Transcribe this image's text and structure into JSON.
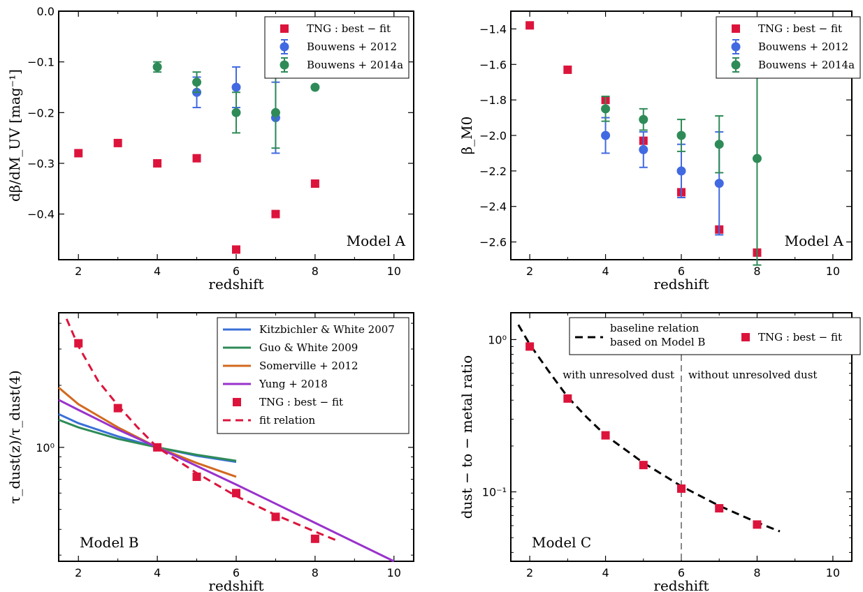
{
  "colors": {
    "tng": "#dc143c",
    "b2012": "#4169e1",
    "b2014": "#2e8b57",
    "kw2007": "#3a6fd8",
    "gw2009": "#2e8b57",
    "s2012": "#d2691e",
    "y2018": "#9932cc",
    "baseline": "#000000",
    "divider": "#888888"
  },
  "chart_data": [
    {
      "type": "scatter",
      "xlabel": "redshift",
      "ylabel": "dβ/dM_UV [mag⁻¹]",
      "xlim": [
        1.5,
        10.5
      ],
      "ylim": [
        -0.49,
        0.0
      ],
      "yscale": "linear",
      "xticks": [
        "2",
        "4",
        "6",
        "8",
        "10"
      ],
      "xtick_values": [
        2,
        4,
        6,
        8,
        10
      ],
      "yticks": [
        "0.0",
        "−0.1",
        "−0.2",
        "−0.3",
        "−0.4"
      ],
      "ytick_values": [
        0.0,
        -0.1,
        -0.2,
        -0.3,
        -0.4
      ],
      "annotation": "Model A",
      "legend_position": "top-right",
      "series": [
        {
          "name": "TNG : best − fit",
          "marker": "square",
          "color": "tng",
          "x": [
            2,
            3,
            4,
            5,
            6,
            7,
            8
          ],
          "y": [
            -0.28,
            -0.26,
            -0.3,
            -0.29,
            -0.47,
            -0.4,
            -0.34
          ]
        },
        {
          "name": "Bouwens + 2012",
          "marker": "circle",
          "color": "b2012",
          "x": [
            5,
            6,
            7
          ],
          "y": [
            -0.16,
            -0.15,
            -0.21
          ],
          "yerr": [
            0.03,
            0.04,
            0.07
          ]
        },
        {
          "name": "Bouwens + 2014a",
          "marker": "circle",
          "color": "b2014",
          "x": [
            4,
            5,
            6,
            7,
            8
          ],
          "y": [
            -0.11,
            -0.14,
            -0.2,
            -0.2,
            -0.15
          ],
          "yerr": [
            0.01,
            0.02,
            0.04,
            0.07,
            0.0
          ]
        }
      ]
    },
    {
      "type": "scatter",
      "xlabel": "redshift",
      "ylabel": "β_M0",
      "xlim": [
        1.5,
        10.5
      ],
      "ylim": [
        -2.7,
        -1.3
      ],
      "yscale": "linear",
      "xticks": [
        "2",
        "4",
        "6",
        "8",
        "10"
      ],
      "xtick_values": [
        2,
        4,
        6,
        8,
        10
      ],
      "yticks": [
        "−1.4",
        "−1.6",
        "−1.8",
        "−2.0",
        "−2.2",
        "−2.4",
        "−2.6"
      ],
      "ytick_values": [
        -1.4,
        -1.6,
        -1.8,
        -2.0,
        -2.2,
        -2.4,
        -2.6
      ],
      "annotation": "Model A",
      "legend_position": "top-right",
      "series": [
        {
          "name": "TNG : best − fit",
          "marker": "square",
          "color": "tng",
          "x": [
            2,
            3,
            4,
            5,
            6,
            7,
            8
          ],
          "y": [
            -1.38,
            -1.63,
            -1.8,
            -2.03,
            -2.32,
            -2.53,
            -2.66
          ]
        },
        {
          "name": "Bouwens + 2012",
          "marker": "circle",
          "color": "b2012",
          "x": [
            4,
            5,
            6,
            7
          ],
          "y": [
            -2.0,
            -2.08,
            -2.2,
            -2.27
          ],
          "yerr": [
            0.1,
            0.1,
            0.15,
            0.29
          ]
        },
        {
          "name": "Bouwens + 2014a",
          "marker": "circle",
          "color": "b2014",
          "x": [
            4,
            5,
            6,
            7,
            8
          ],
          "y": [
            -1.85,
            -1.91,
            -2.0,
            -2.05,
            -2.13
          ],
          "yerr": [
            0.07,
            0.06,
            0.09,
            0.16,
            0.6
          ]
        }
      ]
    },
    {
      "type": "line",
      "xlabel": "redshift",
      "ylabel": "τ_dust(z)/τ_dust(4)",
      "xlim": [
        1.5,
        10.5
      ],
      "ylim": [
        0.28,
        4.5
      ],
      "yscale": "log",
      "xticks": [
        "2",
        "4",
        "6",
        "8",
        "10"
      ],
      "xtick_values": [
        2,
        4,
        6,
        8,
        10
      ],
      "yticks": [
        "10⁰"
      ],
      "ytick_values": [
        1.0
      ],
      "annotation": "Model B",
      "legend_position": "top-right",
      "series": [
        {
          "name": "Kitzbichler & White 2007",
          "style": "line",
          "color": "kw2007",
          "x": [
            1.5,
            2,
            3,
            4,
            5,
            6
          ],
          "y": [
            1.45,
            1.31,
            1.13,
            1.0,
            0.91,
            0.85
          ]
        },
        {
          "name": "Guo & White 2009",
          "style": "line",
          "color": "gw2009",
          "x": [
            1.5,
            2,
            3,
            4,
            5,
            6
          ],
          "y": [
            1.36,
            1.25,
            1.1,
            1.0,
            0.92,
            0.86
          ]
        },
        {
          "name": "Somerville + 2012",
          "style": "line",
          "color": "s2012",
          "x": [
            1.5,
            2,
            3,
            4,
            5,
            6
          ],
          "y": [
            1.95,
            1.62,
            1.25,
            1.0,
            0.84,
            0.72
          ]
        },
        {
          "name": "Yung + 2018",
          "style": "line",
          "color": "y2018",
          "x": [
            1.5,
            2,
            3,
            4,
            6,
            8,
            10
          ],
          "y": [
            1.7,
            1.52,
            1.22,
            1.0,
            0.66,
            0.43,
            0.28
          ]
        },
        {
          "name": "TNG : best − fit",
          "style": "square",
          "color": "tng",
          "x": [
            2,
            3,
            4,
            5,
            6,
            7,
            8
          ],
          "y": [
            3.2,
            1.55,
            1.0,
            0.72,
            0.6,
            0.46,
            0.36
          ]
        },
        {
          "name": "fit relation",
          "style": "dashed",
          "color": "tng",
          "x": [
            1.7,
            2,
            2.5,
            3,
            3.5,
            4,
            5,
            6,
            7,
            8,
            8.6
          ],
          "y": [
            4.2,
            3.1,
            2.1,
            1.6,
            1.25,
            1.0,
            0.75,
            0.58,
            0.47,
            0.39,
            0.35
          ]
        }
      ]
    },
    {
      "type": "scatter",
      "xlabel": "redshift",
      "ylabel": "dust − to − metal ratio",
      "xlim": [
        1.5,
        10.5
      ],
      "ylim": [
        0.035,
        1.5
      ],
      "yscale": "log",
      "xticks": [
        "2",
        "4",
        "6",
        "8",
        "10"
      ],
      "xtick_values": [
        2,
        4,
        6,
        8,
        10
      ],
      "yticks": [
        "10⁰",
        "10⁻¹"
      ],
      "ytick_values": [
        1.0,
        0.1
      ],
      "annotation": "Model C",
      "legend_position": "top",
      "text_left": "with unresolved dust",
      "text_right": "without unresolved dust",
      "divider_x": 6,
      "series": [
        {
          "name": "baseline relation based on Model B",
          "name_lines": [
            "baseline relation",
            "based on Model B"
          ],
          "style": "dashed",
          "color": "baseline",
          "x": [
            1.7,
            2,
            2.5,
            3,
            3.5,
            4,
            5,
            6,
            7,
            8,
            8.6
          ],
          "y": [
            1.25,
            0.93,
            0.62,
            0.42,
            0.31,
            0.235,
            0.155,
            0.109,
            0.081,
            0.063,
            0.055
          ]
        },
        {
          "name": "TNG : best − fit",
          "style": "square",
          "color": "tng",
          "x": [
            2,
            3,
            4,
            5,
            6,
            7,
            8
          ],
          "y": [
            0.9,
            0.41,
            0.235,
            0.15,
            0.105,
            0.078,
            0.061
          ]
        }
      ]
    }
  ]
}
